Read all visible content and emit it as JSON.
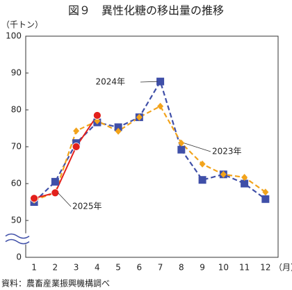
{
  "chart_data": {
    "type": "line",
    "title": "図９　異性化糖の移出量の推移",
    "y_label": "（千トン）",
    "x_label": "（月）",
    "source": "資料：農畜産業振興機構調べ",
    "categories": [
      "1",
      "2",
      "3",
      "4",
      "5",
      "6",
      "7",
      "8",
      "9",
      "10",
      "11",
      "12"
    ],
    "ylim": [
      0,
      100
    ],
    "yticks": [
      0,
      50,
      60,
      70,
      80,
      90,
      100
    ],
    "axis_break": [
      0,
      50
    ],
    "grid": false,
    "series": [
      {
        "name": "2024年",
        "color": "#3f4fa8",
        "dash": true,
        "marker": "square",
        "values": [
          55,
          60.5,
          71,
          76.6,
          75.3,
          78,
          87.7,
          69.2,
          61,
          62.5,
          60,
          55.8
        ]
      },
      {
        "name": "2023年",
        "color": "#f2a31b",
        "dash": true,
        "marker": "diamond",
        "values": [
          55.5,
          57.5,
          74.3,
          77,
          74.2,
          78,
          81,
          71,
          65.3,
          62.5,
          61.7,
          57.7
        ]
      },
      {
        "name": "2025年",
        "color": "#e3201b",
        "dash": false,
        "marker": "circle",
        "values": [
          56,
          57.5,
          70,
          78.5,
          null,
          null,
          null,
          null,
          null,
          null,
          null,
          null
        ]
      }
    ]
  }
}
